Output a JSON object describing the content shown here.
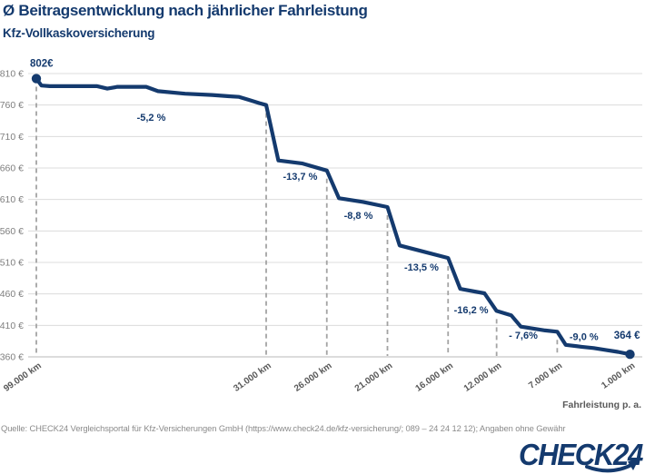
{
  "title": "Ø Beitragsentwicklung nach jährlicher Fahrleistung",
  "subtitle": "Kfz-Vollkaskoversicherung",
  "source_line": "Quelle: CHECK24 Vergleichsportal für Kfz-Versicherungen GmbH (https://www.check24.de/kfz-versicherung/; 089 – 24 24 12 12); Angaben ohne Gewähr",
  "logo": {
    "text": "CHECK24"
  },
  "colors": {
    "navy": "#143a6e",
    "grid": "#dcdcdc",
    "axis_line": "#c6c6c6",
    "dashed_guide": "#a3a3a3",
    "y_label": "#7f7f7f",
    "x_label": "#595959",
    "source_text": "#8a8a8a"
  },
  "chart_data": {
    "type": "line",
    "title": "Ø Beitragsentwicklung nach jährlicher Fahrleistung",
    "subtitle": "Kfz-Vollkaskoversicherung",
    "xlabel": "Fahrleistung p. a.",
    "x_unit": "km",
    "y_unit": "€",
    "ylim": [
      360,
      810
    ],
    "grid": true,
    "legend": false,
    "y_ticks": [
      360,
      410,
      460,
      510,
      560,
      610,
      660,
      710,
      760,
      810
    ],
    "y_tick_labels": [
      "360 €",
      "410 €",
      "460 €",
      "510 €",
      "560 €",
      "610 €",
      "660 €",
      "710 €",
      "760 €",
      "810 €"
    ],
    "x_ticks": [
      {
        "label": "99.000 km",
        "km": 99000
      },
      {
        "label": "31.000 km",
        "km": 31000
      },
      {
        "label": "26.000 km",
        "km": 26000
      },
      {
        "label": "21.000 km",
        "km": 21000
      },
      {
        "label": "16.000 km",
        "km": 16000
      },
      {
        "label": "12.000 km",
        "km": 12000
      },
      {
        "label": "7.000 km",
        "km": 7000
      },
      {
        "label": "1.000 km",
        "km": 1000
      }
    ],
    "key_points": [
      {
        "km": 99000,
        "eur": 802
      },
      {
        "km": 31000,
        "eur": 760
      },
      {
        "km": 26000,
        "eur": 656
      },
      {
        "km": 21000,
        "eur": 598
      },
      {
        "km": 16000,
        "eur": 517
      },
      {
        "km": 12000,
        "eur": 433
      },
      {
        "km": 7000,
        "eur": 400
      },
      {
        "km": 1000,
        "eur": 364
      }
    ],
    "segment_changes": [
      {
        "from_km": 99000,
        "to_km": 31000,
        "label": "-5,2 %"
      },
      {
        "from_km": 31000,
        "to_km": 26000,
        "label": "-13,7 %"
      },
      {
        "from_km": 26000,
        "to_km": 21000,
        "label": "-8,8 %"
      },
      {
        "from_km": 21000,
        "to_km": 16000,
        "label": "-13,5 %"
      },
      {
        "from_km": 16000,
        "to_km": 12000,
        "label": "-16,2 %"
      },
      {
        "from_km": 12000,
        "to_km": 7000,
        "label": "- 7,6%"
      },
      {
        "from_km": 7000,
        "to_km": 1000,
        "label": "-9,0 %"
      }
    ],
    "curve": [
      [
        99000,
        802
      ],
      [
        97500,
        791
      ],
      [
        95000,
        790
      ],
      [
        81000,
        790
      ],
      [
        78000,
        786
      ],
      [
        75000,
        789
      ],
      [
        66500,
        789
      ],
      [
        63000,
        782
      ],
      [
        55000,
        778
      ],
      [
        47000,
        776
      ],
      [
        42000,
        774
      ],
      [
        39000,
        773
      ],
      [
        36000,
        768
      ],
      [
        33000,
        763
      ],
      [
        31000,
        760
      ],
      [
        30000,
        672
      ],
      [
        28000,
        667
      ],
      [
        26000,
        656
      ],
      [
        25000,
        612
      ],
      [
        23000,
        606
      ],
      [
        21000,
        598
      ],
      [
        20000,
        537
      ],
      [
        18000,
        527
      ],
      [
        16000,
        517
      ],
      [
        15000,
        468
      ],
      [
        13000,
        461
      ],
      [
        12000,
        433
      ],
      [
        10800,
        426
      ],
      [
        10000,
        408
      ],
      [
        9000,
        405
      ],
      [
        8000,
        402
      ],
      [
        7000,
        400
      ],
      [
        6300,
        379
      ],
      [
        5000,
        376
      ],
      [
        4000,
        374
      ],
      [
        3000,
        371
      ],
      [
        2000,
        368
      ],
      [
        1000,
        364
      ]
    ],
    "dashed_guides": [
      {
        "km": 99000,
        "eur": 802
      },
      {
        "km": 31000,
        "eur": 760
      },
      {
        "km": 26000,
        "eur": 656
      },
      {
        "km": 21000,
        "eur": 598
      },
      {
        "km": 16000,
        "eur": 517
      },
      {
        "km": 12000,
        "eur": 433
      },
      {
        "km": 7000,
        "eur": 400
      }
    ],
    "markers": [
      {
        "km": 99000,
        "eur": 802
      },
      {
        "km": 1000,
        "eur": 364
      }
    ],
    "annotations": [
      {
        "text": "-5,2 %",
        "x_km": 65000,
        "y_eur": 735
      },
      {
        "text": "-13,7 %",
        "x_km": 28200,
        "y_eur": 641
      },
      {
        "text": "-8,8 %",
        "x_km": 23400,
        "y_eur": 579
      },
      {
        "text": "-13,5 %",
        "x_km": 18200,
        "y_eur": 497
      },
      {
        "text": "-16,2 %",
        "x_km": 14100,
        "y_eur": 429
      },
      {
        "text": "- 7,6%",
        "x_km": 9800,
        "y_eur": 389
      },
      {
        "text": "-9,0 %",
        "x_km": 4800,
        "y_eur": 387
      }
    ],
    "point_labels": [
      {
        "text": "802€",
        "x_km": 99000,
        "y_eur": 802
      },
      {
        "text": "364 €",
        "x_km": 1000,
        "y_eur": 364
      }
    ]
  }
}
